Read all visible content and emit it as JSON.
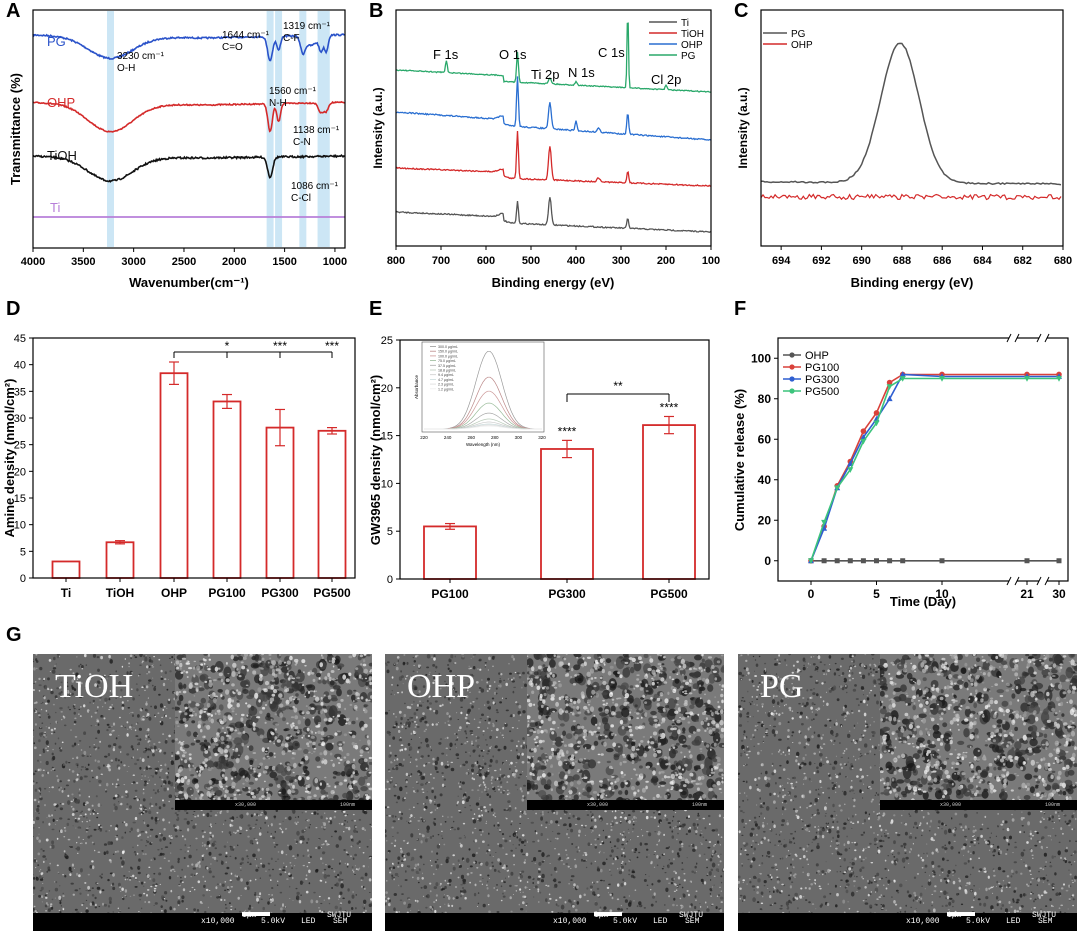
{
  "panels": {
    "a": "A",
    "b": "B",
    "c": "C",
    "d": "D",
    "e": "E",
    "f": "F",
    "g": "G"
  },
  "colors": {
    "ti_purple": "#b77fd9",
    "tioh_black": "#111111",
    "ohp_red": "#d42a2a",
    "pg_blue": "#2a52c9",
    "pg_green": "#2aa86a",
    "band": "#cce6f5",
    "bar_red": "#d42a2a",
    "f_gray": "#555555",
    "f_red": "#d9413a",
    "f_blue": "#2f5fd1",
    "f_green": "#3cc47c"
  },
  "chart_data": [
    {
      "panel": "A",
      "type": "line",
      "xlabel": "Wavenumber(cm⁻¹)",
      "ylabel": "Transmittance (%)",
      "xlim": [
        4000,
        900
      ],
      "xticks": [
        "4000",
        "3500",
        "3000",
        "2500",
        "2000",
        "1500",
        "1000"
      ],
      "series": [
        {
          "name": "PG",
          "color": "#2a52c9"
        },
        {
          "name": "OHP",
          "color": "#d42a2a"
        },
        {
          "name": "TiOH",
          "color": "#111111"
        },
        {
          "name": "Ti",
          "color": "#b77fd9"
        }
      ],
      "bands": [
        3230,
        1644,
        1560,
        1319,
        1138,
        1086
      ],
      "annotations": [
        {
          "wn": "3230 cm⁻¹",
          "group": "O-H"
        },
        {
          "wn": "1644 cm⁻¹",
          "group": "C=O"
        },
        {
          "wn": "1319 cm⁻¹",
          "group": "C-F"
        },
        {
          "wn": "1560 cm⁻¹",
          "group": "N-H"
        },
        {
          "wn": "1138 cm⁻¹",
          "group": "C-N"
        },
        {
          "wn": "1086 cm⁻¹",
          "group": "C-Cl"
        }
      ]
    },
    {
      "panel": "B",
      "type": "line",
      "xlabel": "Binding energy (eV)",
      "ylabel": "Intensity (a.u.)",
      "xlim": [
        800,
        100
      ],
      "xticks": [
        "800",
        "700",
        "600",
        "500",
        "400",
        "300",
        "200",
        "100"
      ],
      "series": [
        {
          "name": "Ti",
          "color": "#555555"
        },
        {
          "name": "TiOH",
          "color": "#d42a2a"
        },
        {
          "name": "OHP",
          "color": "#2a6fd1"
        },
        {
          "name": "PG",
          "color": "#2aa86a"
        }
      ],
      "peaks": [
        "F 1s",
        "O 1s",
        "Ti 2p",
        "N 1s",
        "C 1s",
        "Cl 2p"
      ]
    },
    {
      "panel": "C",
      "type": "line",
      "xlabel": "Binding energy (eV)",
      "ylabel": "Intensity (a.u.)",
      "xlim": [
        695,
        680
      ],
      "xticks": [
        "694",
        "692",
        "690",
        "688",
        "686",
        "684",
        "682",
        "680"
      ],
      "series": [
        {
          "name": "PG",
          "color": "#555555",
          "peak": 688.1
        },
        {
          "name": "OHP",
          "color": "#d42a2a"
        }
      ]
    },
    {
      "panel": "D",
      "type": "bar",
      "ylabel": "Amine density (nmol/cm²)",
      "ylim": [
        0,
        45
      ],
      "yticks": [
        "0",
        "5",
        "10",
        "15",
        "20",
        "25",
        "30",
        "35",
        "40",
        "45"
      ],
      "categories": [
        "Ti",
        "TiOH",
        "OHP",
        "PG100",
        "PG300",
        "PG500"
      ],
      "values": [
        3.1,
        6.7,
        38.4,
        33.1,
        28.2,
        27.6
      ],
      "errors": [
        0,
        0.3,
        2.1,
        1.3,
        3.4,
        0.6
      ],
      "significance": [
        {
          "from": "OHP",
          "to": "PG100",
          "label": "*"
        },
        {
          "from": "OHP",
          "to": "PG300",
          "label": "***"
        },
        {
          "from": "OHP",
          "to": "PG500",
          "label": "***"
        }
      ]
    },
    {
      "panel": "E",
      "type": "bar",
      "ylabel": "GW3965 density (nmol/cm²)",
      "ylim": [
        0,
        25
      ],
      "yticks": [
        "0",
        "5",
        "10",
        "15",
        "20",
        "25"
      ],
      "categories": [
        "PG100",
        "PG300",
        "PG500"
      ],
      "values": [
        5.5,
        13.6,
        16.1
      ],
      "errors": [
        0.3,
        0.9,
        0.9
      ],
      "bar_labels": [
        "",
        "****",
        "****"
      ],
      "significance": [
        {
          "from": "PG300",
          "to": "PG500",
          "label": "**"
        }
      ],
      "inset": {
        "xlabel": "Wavelength (nm)",
        "ylabel": "Absorbance",
        "xticks": [
          "220",
          "240",
          "260",
          "280",
          "300",
          "320"
        ],
        "legend": [
          "300.0 μg/mL",
          "150.0 μg/mL",
          "100.0 μg/mL",
          "75.0 μg/mL",
          "37.5 μg/mL",
          "18.8 μg/mL",
          "9.4 μg/mL",
          "4.7 μg/mL",
          "2.3 μg/mL",
          "1.2 μg/mL"
        ]
      }
    },
    {
      "panel": "F",
      "type": "line",
      "xlabel": "Time (Day)",
      "ylabel": "Cumulative release (%)",
      "ylim": [
        -10,
        110
      ],
      "yticks": [
        "0",
        "20",
        "40",
        "60",
        "80",
        "100"
      ],
      "xticks": [
        "0",
        "5",
        "10",
        "21",
        "30"
      ],
      "series": [
        {
          "name": "OHP",
          "color": "#555555",
          "x": [
            0,
            1,
            2,
            3,
            4,
            5,
            6,
            7,
            10,
            21,
            30
          ],
          "y": [
            0,
            0,
            0,
            0,
            0,
            0,
            0,
            0,
            0,
            0,
            0
          ]
        },
        {
          "name": "PG100",
          "color": "#d9413a",
          "x": [
            0,
            1,
            2,
            3,
            4,
            5,
            6,
            7,
            10,
            21,
            30
          ],
          "y": [
            0,
            17,
            37,
            49,
            64,
            73,
            88,
            92,
            92,
            92,
            92
          ]
        },
        {
          "name": "PG300",
          "color": "#2f5fd1",
          "x": [
            0,
            1,
            2,
            3,
            4,
            5,
            6,
            7,
            10,
            21,
            30
          ],
          "y": [
            0,
            16,
            36,
            48,
            61,
            70,
            80,
            92,
            91,
            91,
            91
          ]
        },
        {
          "name": "PG500",
          "color": "#3cc47c",
          "x": [
            0,
            1,
            2,
            3,
            4,
            5,
            6,
            7,
            10,
            21,
            30
          ],
          "y": [
            0,
            19,
            36,
            45,
            59,
            68,
            86,
            90,
            90,
            90,
            90
          ]
        }
      ]
    }
  ],
  "sem": [
    {
      "label": "TiOH",
      "magnification": "x10,000",
      "voltage": "5.0kV",
      "detector": "LED",
      "scale": "1μm",
      "inst": "SWJTU",
      "mode": "SEM",
      "inset_mag": "x30,000",
      "inset_scale": "100nm"
    },
    {
      "label": "OHP",
      "magnification": "x10,000",
      "voltage": "5.0kV",
      "detector": "LED",
      "scale": "1μm",
      "inst": "SWJTU",
      "mode": "SEM",
      "inset_mag": "x30,000",
      "inset_scale": "100nm"
    },
    {
      "label": "PG",
      "magnification": "x10,000",
      "voltage": "5.0kV",
      "detector": "LED",
      "scale": "1μm",
      "inst": "SWJTU",
      "mode": "SEM",
      "inset_mag": "x30,000",
      "inset_scale": "100nm"
    }
  ]
}
